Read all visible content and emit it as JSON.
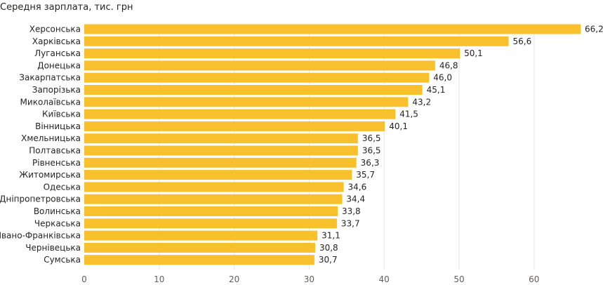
{
  "chart_data": {
    "type": "bar",
    "orientation": "horizontal",
    "title": "Середня зарплата, тис. грн",
    "categories": [
      "Херсонська",
      "Харківська",
      "Луганська",
      "Донецька",
      "Закарпатська",
      "Запорізька",
      "Миколаївська",
      "Київська",
      "Вінницька",
      "Хмельницька",
      "Полтавська",
      "Рівненська",
      "Житомирська",
      "Одеська",
      "Дніпропетровська",
      "Волинська",
      "Черкаська",
      "Івано-Франківська",
      "Чернівецька",
      "Сумська"
    ],
    "values": [
      66.2,
      56.6,
      50.1,
      46.8,
      46.0,
      45.1,
      43.2,
      41.5,
      40.1,
      36.5,
      36.5,
      36.3,
      35.7,
      34.6,
      34.4,
      33.8,
      33.7,
      31.1,
      30.8,
      30.7
    ],
    "value_labels": [
      "66,2",
      "56,6",
      "50,1",
      "46,8",
      "46,0",
      "45,1",
      "43,2",
      "41,5",
      "40,1",
      "36,5",
      "36,5",
      "36,3",
      "35,7",
      "34,6",
      "34,4",
      "33,8",
      "33,7",
      "31,1",
      "30,8",
      "30,7"
    ],
    "xticks": [
      0,
      10,
      20,
      30,
      40,
      50,
      60
    ],
    "xlim": [
      0,
      68
    ],
    "grid": true,
    "legend": "none",
    "bar_color": "#f7c02c"
  }
}
